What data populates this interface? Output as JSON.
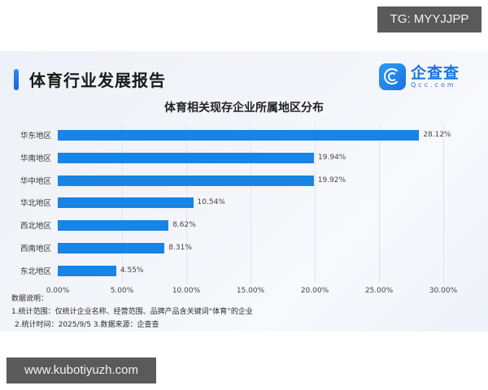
{
  "watermarks": {
    "top_right": "TG: MYYJJPP",
    "bottom_left": "www.kubotiyuzh.com"
  },
  "header": {
    "report_title": "体育行业发展报告",
    "logo_cn": "企查查",
    "logo_en": "Qcc.com",
    "logo_icon": "qcc-logo-icon"
  },
  "colors": {
    "bar": "#1784e6",
    "accent": "#1a73e0"
  },
  "notes": {
    "heading": "数据说明：",
    "line1": "1.统计范围：仅统计企业名称、经营范围、品牌产品含关键词“体育”的企业",
    "line2": "2.统计时间：2025/9/5  3.数据来源：企查查"
  },
  "chart_data": {
    "type": "bar",
    "orientation": "horizontal",
    "title": "体育相关现存企业所属地区分布",
    "categories": [
      "华东地区",
      "华南地区",
      "华中地区",
      "华北地区",
      "西北地区",
      "西南地区",
      "东北地区"
    ],
    "values": [
      28.12,
      19.94,
      19.92,
      10.54,
      8.62,
      8.31,
      4.55
    ],
    "value_labels": [
      "28.12%",
      "19.94%",
      "19.92%",
      "10.54%",
      "8.62%",
      "8.31%",
      "4.55%"
    ],
    "xlabel": "",
    "ylabel": "",
    "xlim": [
      0,
      30
    ],
    "x_ticks": [
      0,
      5,
      10,
      15,
      20,
      25,
      30
    ],
    "x_tick_labels": [
      "0.00%",
      "5.00%",
      "10.00%",
      "15.00%",
      "20.00%",
      "25.00%",
      "30.00%"
    ],
    "grid": "vertical",
    "legend": "none",
    "unit": "%"
  }
}
